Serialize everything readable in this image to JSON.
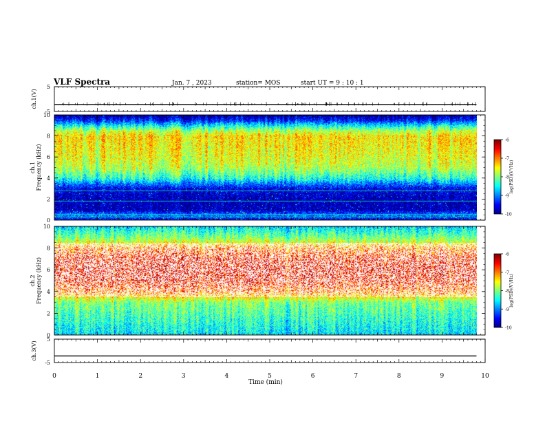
{
  "header": {
    "title": "VLF Spectra",
    "date": "Jan. 7 , 2023",
    "station": "station= MOS",
    "start_ut": "start UT =  9 : 10 : 1"
  },
  "chart_data": [
    {
      "type": "line",
      "panel": "ch1-waveform",
      "ylabel": "ch.1(V)",
      "ylim": [
        -5,
        5
      ],
      "y_ticks": [
        "5",
        "-5"
      ],
      "x": [
        0,
        9.8
      ],
      "values": [
        -2.2,
        -2.2
      ],
      "color": "#000000"
    },
    {
      "type": "heatmap",
      "panel": "ch1-spectrogram",
      "ylabel_line1": "ch.1",
      "ylabel_line2": "Frequency (kHz)",
      "xlim": [
        0,
        10
      ],
      "ylim": [
        0,
        10
      ],
      "y_ticks": [
        "0",
        "2",
        "4",
        "6",
        "8",
        "10"
      ],
      "colorbar": {
        "label": "log(PSD)(V²/Hz)",
        "range": [
          -10,
          -6
        ],
        "ticks": [
          "-6",
          "-7",
          "-8",
          "-9",
          "-10"
        ]
      },
      "frequency_profile_khz": [
        0,
        0.5,
        1,
        2,
        3,
        3.5,
        4,
        5,
        6,
        7,
        8,
        8.5,
        9,
        9.5,
        10
      ],
      "log_psd_profile": [
        -9.6,
        -9.0,
        -9.8,
        -9.8,
        -9.6,
        -9.0,
        -8.4,
        -7.8,
        -7.6,
        -7.5,
        -7.4,
        -7.8,
        -8.5,
        -9.4,
        -9.9
      ]
    },
    {
      "type": "heatmap",
      "panel": "ch2-spectrogram",
      "ylabel_line1": "ch.2",
      "ylabel_line2": "Frequency (kHz)",
      "xlim": [
        0,
        10
      ],
      "ylim": [
        0,
        10
      ],
      "y_ticks": [
        "0",
        "2",
        "4",
        "6",
        "8",
        "10"
      ],
      "colorbar": {
        "label": "log(PSD)(V²/Hz)",
        "range": [
          -10,
          -6
        ],
        "ticks": [
          "-6",
          "-7",
          "-8",
          "-9",
          "-10"
        ]
      },
      "frequency_profile_khz": [
        0,
        1,
        2,
        3,
        3.5,
        4,
        5,
        6,
        7,
        7.5,
        8,
        8.5,
        9,
        9.5,
        10
      ],
      "log_psd_profile": [
        -8.6,
        -8.4,
        -8.2,
        -8.0,
        -7.5,
        -7.0,
        -6.6,
        -6.5,
        -6.6,
        -6.8,
        -7.0,
        -7.6,
        -8.0,
        -8.3,
        -8.6
      ]
    },
    {
      "type": "line",
      "panel": "ch3-waveform",
      "ylabel": "ch.3(V)",
      "ylim": [
        -5,
        5
      ],
      "y_ticks": [
        "5",
        "-5"
      ],
      "x": [
        0,
        9.8
      ],
      "values": [
        -2.2,
        -2.2
      ],
      "color": "#000000"
    }
  ],
  "x_axis": {
    "label": "Time (min)",
    "ticks": [
      "0",
      "1",
      "2",
      "3",
      "4",
      "5",
      "6",
      "7",
      "8",
      "9",
      "10"
    ],
    "xlim": [
      0,
      10
    ]
  }
}
